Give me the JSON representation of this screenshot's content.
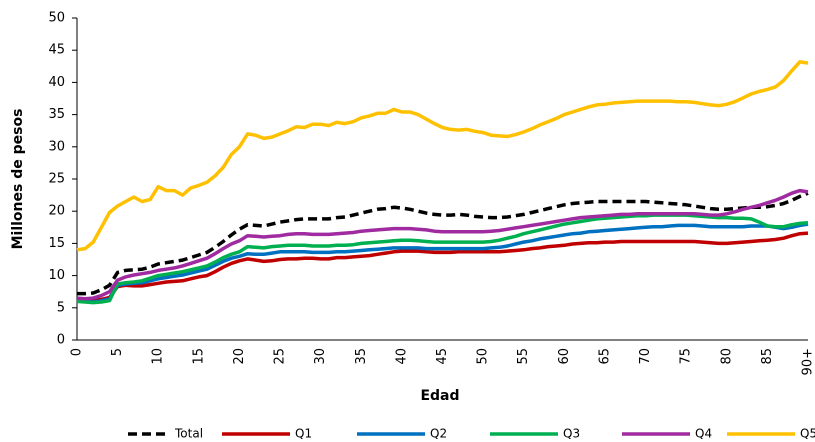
{
  "chart_data": {
    "type": "line",
    "x_label": "Edad",
    "y_label": "Millones de pesos",
    "categories": [
      "0",
      null,
      null,
      null,
      null,
      "5",
      null,
      null,
      null,
      null,
      "10",
      null,
      null,
      null,
      null,
      "15",
      null,
      null,
      null,
      null,
      "20",
      null,
      null,
      null,
      null,
      "25",
      null,
      null,
      null,
      null,
      "30",
      null,
      null,
      null,
      null,
      "35",
      null,
      null,
      null,
      null,
      "40",
      null,
      null,
      null,
      null,
      "45",
      null,
      null,
      null,
      null,
      "50",
      null,
      null,
      null,
      null,
      "55",
      null,
      null,
      null,
      null,
      "60",
      null,
      null,
      null,
      null,
      "65",
      null,
      null,
      null,
      null,
      "70",
      null,
      null,
      null,
      null,
      "75",
      null,
      null,
      null,
      null,
      "80",
      null,
      null,
      null,
      null,
      "85",
      null,
      null,
      null,
      null,
      "90+"
    ],
    "ylim": [
      0,
      50
    ],
    "yticks": [
      0,
      5,
      10,
      15,
      20,
      25,
      30,
      35,
      40,
      45,
      50
    ],
    "grid": false,
    "legend": "bottom",
    "series": [
      {
        "name": "Total",
        "color": "#000000",
        "dashed": true,
        "values": [
          7.2,
          7.2,
          7.3,
          7.8,
          8.5,
          10.5,
          10.8,
          10.9,
          11,
          11.3,
          11.8,
          12,
          12.2,
          12.4,
          12.8,
          13.2,
          13.6,
          14.4,
          15.3,
          16.3,
          17.2,
          17.9,
          17.8,
          17.7,
          18,
          18.3,
          18.5,
          18.7,
          18.8,
          18.8,
          18.8,
          18.8,
          19,
          19.1,
          19.4,
          19.7,
          20,
          20.3,
          20.4,
          20.6,
          20.5,
          20.3,
          20,
          19.7,
          19.5,
          19.4,
          19.4,
          19.5,
          19.4,
          19.2,
          19.1,
          19,
          19,
          19.1,
          19.3,
          19.5,
          19.8,
          20.1,
          20.4,
          20.7,
          21,
          21.2,
          21.3,
          21.4,
          21.5,
          21.5,
          21.5,
          21.5,
          21.5,
          21.5,
          21.5,
          21.4,
          21.3,
          21.2,
          21.1,
          21,
          20.8,
          20.6,
          20.4,
          20.3,
          20.3,
          20.4,
          20.5,
          20.6,
          20.6,
          20.7,
          20.9,
          21.2,
          21.7,
          22.3,
          22.8
        ]
      },
      {
        "name": "Q1",
        "color": "#c00000",
        "values": [
          6.3,
          6.2,
          6.1,
          6.3,
          6.6,
          8.3,
          8.5,
          8.4,
          8.4,
          8.6,
          8.8,
          9,
          9.1,
          9.2,
          9.5,
          9.8,
          10,
          10.6,
          11.3,
          11.9,
          12.3,
          12.6,
          12.4,
          12.2,
          12.3,
          12.5,
          12.6,
          12.6,
          12.7,
          12.7,
          12.6,
          12.6,
          12.8,
          12.8,
          12.9,
          13,
          13.1,
          13.3,
          13.5,
          13.7,
          13.8,
          13.8,
          13.8,
          13.7,
          13.6,
          13.6,
          13.6,
          13.7,
          13.7,
          13.7,
          13.7,
          13.7,
          13.7,
          13.8,
          13.9,
          14,
          14.2,
          14.3,
          14.5,
          14.6,
          14.7,
          14.9,
          15,
          15.1,
          15.1,
          15.2,
          15.2,
          15.3,
          15.3,
          15.3,
          15.3,
          15.3,
          15.3,
          15.3,
          15.3,
          15.3,
          15.3,
          15.2,
          15.1,
          15,
          15,
          15.1,
          15.2,
          15.3,
          15.4,
          15.5,
          15.6,
          15.8,
          16.2,
          16.5,
          16.6
        ]
      },
      {
        "name": "Q2",
        "color": "#0070c0",
        "values": [
          6.2,
          6,
          5.9,
          6.1,
          6.4,
          8.5,
          8.7,
          8.8,
          8.9,
          9.2,
          9.5,
          9.7,
          9.9,
          10.1,
          10.4,
          10.7,
          11,
          11.6,
          12.2,
          12.7,
          13,
          13.4,
          13.3,
          13.3,
          13.5,
          13.7,
          13.7,
          13.7,
          13.7,
          13.6,
          13.6,
          13.6,
          13.7,
          13.7,
          13.8,
          13.9,
          14,
          14.1,
          14.2,
          14.3,
          14.3,
          14.3,
          14.3,
          14.2,
          14.2,
          14.2,
          14.2,
          14.2,
          14.2,
          14.2,
          14.2,
          14.3,
          14.4,
          14.6,
          14.9,
          15.2,
          15.4,
          15.7,
          15.9,
          16.1,
          16.3,
          16.5,
          16.6,
          16.8,
          16.9,
          17,
          17.1,
          17.2,
          17.3,
          17.4,
          17.5,
          17.6,
          17.6,
          17.7,
          17.8,
          17.8,
          17.8,
          17.7,
          17.6,
          17.6,
          17.6,
          17.6,
          17.6,
          17.7,
          17.7,
          17.7,
          17.5,
          17.3,
          17.5,
          17.8,
          18
        ]
      },
      {
        "name": "Q3",
        "color": "#00b050",
        "values": [
          6,
          5.9,
          5.8,
          5.9,
          6.1,
          8.7,
          8.9,
          9,
          9.2,
          9.6,
          10,
          10.2,
          10.4,
          10.6,
          10.9,
          11.2,
          11.5,
          12.1,
          12.8,
          13.3,
          13.7,
          14.5,
          14.4,
          14.3,
          14.5,
          14.6,
          14.7,
          14.7,
          14.7,
          14.6,
          14.6,
          14.6,
          14.7,
          14.7,
          14.8,
          15,
          15.1,
          15.2,
          15.3,
          15.4,
          15.5,
          15.5,
          15.4,
          15.3,
          15.2,
          15.2,
          15.2,
          15.2,
          15.2,
          15.2,
          15.2,
          15.3,
          15.5,
          15.8,
          16.1,
          16.5,
          16.8,
          17.1,
          17.4,
          17.7,
          18,
          18.2,
          18.4,
          18.6,
          18.8,
          18.9,
          19,
          19.1,
          19.2,
          19.3,
          19.3,
          19.4,
          19.4,
          19.4,
          19.4,
          19.4,
          19.3,
          19.2,
          19.1,
          19,
          19,
          18.9,
          18.9,
          18.8,
          18.3,
          17.7,
          17.6,
          17.6,
          17.9,
          18.1,
          18.2
        ]
      },
      {
        "name": "Q4",
        "color": "#a02ba0",
        "values": [
          6.5,
          6.4,
          6.5,
          6.9,
          7.5,
          9.3,
          9.8,
          10.1,
          10.3,
          10.5,
          10.8,
          11,
          11.2,
          11.5,
          11.9,
          12.3,
          12.7,
          13.4,
          14.2,
          14.9,
          15.4,
          16.2,
          16.1,
          16,
          16.1,
          16.2,
          16.4,
          16.5,
          16.5,
          16.4,
          16.4,
          16.4,
          16.5,
          16.6,
          16.7,
          16.9,
          17,
          17.1,
          17.2,
          17.3,
          17.3,
          17.3,
          17.2,
          17.1,
          16.9,
          16.8,
          16.8,
          16.8,
          16.8,
          16.8,
          16.8,
          16.9,
          17,
          17.2,
          17.4,
          17.6,
          17.8,
          18,
          18.2,
          18.4,
          18.6,
          18.8,
          19,
          19.1,
          19.2,
          19.3,
          19.4,
          19.5,
          19.5,
          19.6,
          19.6,
          19.6,
          19.6,
          19.6,
          19.6,
          19.6,
          19.6,
          19.5,
          19.4,
          19.4,
          19.6,
          19.9,
          20.3,
          20.6,
          20.9,
          21.3,
          21.7,
          22.2,
          22.8,
          23.2,
          23
        ]
      },
      {
        "name": "Q5",
        "color": "#ffc000",
        "values": [
          14,
          14.2,
          15.2,
          17.5,
          19.8,
          20.8,
          21.5,
          22.2,
          21.5,
          21.8,
          23.8,
          23.2,
          23.2,
          22.5,
          23.6,
          24,
          24.5,
          25.5,
          26.8,
          28.8,
          30,
          32,
          31.8,
          31.3,
          31.5,
          32,
          32.5,
          33.1,
          33,
          33.5,
          33.5,
          33.3,
          33.8,
          33.6,
          33.9,
          34.5,
          34.8,
          35.2,
          35.2,
          35.8,
          35.4,
          35.4,
          35,
          34.3,
          33.6,
          33,
          32.7,
          32.6,
          32.7,
          32.4,
          32.2,
          31.8,
          31.7,
          31.6,
          31.9,
          32.3,
          32.8,
          33.4,
          33.9,
          34.4,
          35,
          35.4,
          35.8,
          36.2,
          36.5,
          36.6,
          36.8,
          36.9,
          37,
          37.1,
          37.1,
          37.1,
          37.1,
          37.1,
          37,
          37,
          36.9,
          36.7,
          36.5,
          36.4,
          36.6,
          37,
          37.6,
          38.2,
          38.6,
          38.9,
          39.3,
          40.3,
          41.8,
          43.2,
          43
        ]
      }
    ]
  }
}
